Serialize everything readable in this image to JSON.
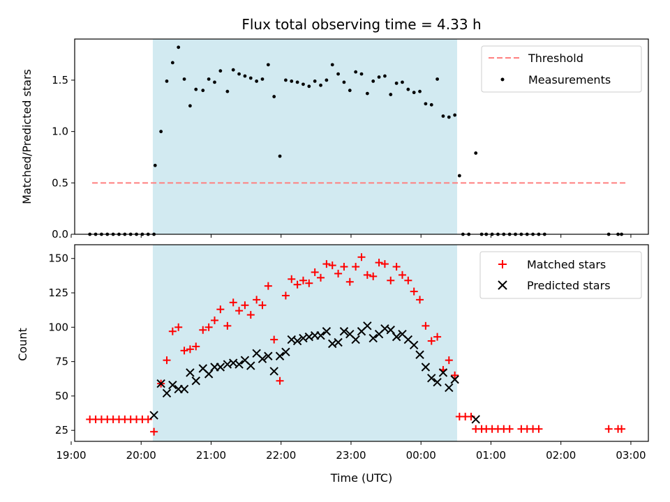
{
  "chart_data": [
    {
      "type": "scatter",
      "title": "Flux total observing time = 4.33 h",
      "xlabel": "",
      "ylabel": "Matched/Predicted stars",
      "ylim": [
        0,
        1.9
      ],
      "xlim": [
        "19:03",
        "03:15"
      ],
      "yticks": [
        0.0,
        0.5,
        1.0,
        1.5
      ],
      "yticklabels": [
        "0.0",
        "0.5",
        "1.0",
        "1.5"
      ],
      "grid": false,
      "legend_position": "top-right",
      "shaded_span": [
        "20:10",
        "00:31"
      ],
      "shade_color": "#add8e6",
      "threshold": {
        "name": "Threshold",
        "value": 0.5,
        "x": [
          "19:18",
          "02:57"
        ],
        "color": "#ff7f7f"
      },
      "series": [
        {
          "name": "Measurements",
          "color": "#000000",
          "marker": "dot",
          "points": [
            [
              "19:16",
              0
            ],
            [
              "19:21",
              0
            ],
            [
              "19:26",
              0
            ],
            [
              "19:31",
              0
            ],
            [
              "19:36",
              0
            ],
            [
              "19:41",
              0
            ],
            [
              "19:46",
              0
            ],
            [
              "19:51",
              0
            ],
            [
              "19:56",
              0
            ],
            [
              "20:01",
              0
            ],
            [
              "20:06",
              0
            ],
            [
              "20:11",
              0
            ],
            [
              "20:12",
              0.67
            ],
            [
              "20:17",
              1.0
            ],
            [
              "20:22",
              1.49
            ],
            [
              "20:27",
              1.67
            ],
            [
              "20:32",
              1.82
            ],
            [
              "20:37",
              1.51
            ],
            [
              "20:42",
              1.25
            ],
            [
              "20:47",
              1.41
            ],
            [
              "20:53",
              1.4
            ],
            [
              "20:58",
              1.51
            ],
            [
              "21:03",
              1.48
            ],
            [
              "21:08",
              1.59
            ],
            [
              "21:14",
              1.39
            ],
            [
              "21:19",
              1.6
            ],
            [
              "21:24",
              1.56
            ],
            [
              "21:29",
              1.54
            ],
            [
              "21:34",
              1.52
            ],
            [
              "21:39",
              1.49
            ],
            [
              "21:44",
              1.51
            ],
            [
              "21:49",
              1.65
            ],
            [
              "21:54",
              1.34
            ],
            [
              "21:59",
              0.76
            ],
            [
              "22:04",
              1.5
            ],
            [
              "22:09",
              1.49
            ],
            [
              "22:14",
              1.48
            ],
            [
              "22:19",
              1.46
            ],
            [
              "22:24",
              1.44
            ],
            [
              "22:29",
              1.49
            ],
            [
              "22:34",
              1.45
            ],
            [
              "22:39",
              1.5
            ],
            [
              "22:44",
              1.65
            ],
            [
              "22:49",
              1.56
            ],
            [
              "22:54",
              1.48
            ],
            [
              "22:59",
              1.4
            ],
            [
              "23:04",
              1.58
            ],
            [
              "23:09",
              1.56
            ],
            [
              "23:14",
              1.37
            ],
            [
              "23:19",
              1.49
            ],
            [
              "23:24",
              1.53
            ],
            [
              "23:29",
              1.54
            ],
            [
              "23:34",
              1.36
            ],
            [
              "23:39",
              1.47
            ],
            [
              "23:44",
              1.48
            ],
            [
              "23:49",
              1.41
            ],
            [
              "23:54",
              1.38
            ],
            [
              "23:59",
              1.39
            ],
            [
              "00:04",
              1.27
            ],
            [
              "00:09",
              1.26
            ],
            [
              "00:14",
              1.51
            ],
            [
              "00:19",
              1.15
            ],
            [
              "00:24",
              1.14
            ],
            [
              "00:29",
              1.16
            ],
            [
              "00:33",
              0.57
            ],
            [
              "00:36",
              0
            ],
            [
              "00:41",
              0
            ],
            [
              "00:47",
              0.79
            ],
            [
              "00:52",
              0
            ],
            [
              "00:56",
              0
            ],
            [
              "01:01",
              0
            ],
            [
              "01:06",
              0
            ],
            [
              "01:11",
              0
            ],
            [
              "01:16",
              0
            ],
            [
              "01:21",
              0
            ],
            [
              "01:26",
              0
            ],
            [
              "01:31",
              0
            ],
            [
              "01:36",
              0
            ],
            [
              "01:41",
              0
            ],
            [
              "01:46",
              0
            ],
            [
              "02:41",
              0
            ],
            [
              "02:49",
              0
            ],
            [
              "02:52",
              0
            ]
          ]
        }
      ]
    },
    {
      "type": "scatter",
      "title": "",
      "xlabel": "Time (UTC)",
      "ylabel": "Count",
      "ylim": [
        17,
        160
      ],
      "xlim": [
        "19:03",
        "03:15"
      ],
      "yticks": [
        25,
        50,
        75,
        100,
        125,
        150
      ],
      "yticklabels": [
        "25",
        "50",
        "75",
        "100",
        "125",
        "150"
      ],
      "xticks": [
        "19:00",
        "20:00",
        "21:00",
        "22:00",
        "23:00",
        "00:00",
        "01:00",
        "02:00",
        "03:00"
      ],
      "xticklabels": [
        "19:00",
        "20:00",
        "21:00",
        "22:00",
        "23:00",
        "00:00",
        "01:00",
        "02:00",
        "03:00"
      ],
      "grid": false,
      "legend_position": "top-right",
      "shaded_span": [
        "20:10",
        "00:31"
      ],
      "shade_color": "#add8e6",
      "series": [
        {
          "name": "Matched stars",
          "color": "#ff0000",
          "marker": "plus",
          "points": [
            [
              "19:16",
              33
            ],
            [
              "19:21",
              33
            ],
            [
              "19:26",
              33
            ],
            [
              "19:31",
              33
            ],
            [
              "19:36",
              33
            ],
            [
              "19:41",
              33
            ],
            [
              "19:46",
              33
            ],
            [
              "19:51",
              33
            ],
            [
              "19:56",
              33
            ],
            [
              "20:01",
              33
            ],
            [
              "20:06",
              33
            ],
            [
              "20:11",
              24
            ],
            [
              "20:17",
              59
            ],
            [
              "20:22",
              76
            ],
            [
              "20:27",
              97
            ],
            [
              "20:32",
              100
            ],
            [
              "20:37",
              83
            ],
            [
              "20:42",
              84
            ],
            [
              "20:47",
              86
            ],
            [
              "20:53",
              98
            ],
            [
              "20:58",
              100
            ],
            [
              "21:03",
              105
            ],
            [
              "21:08",
              113
            ],
            [
              "21:14",
              101
            ],
            [
              "21:19",
              118
            ],
            [
              "21:24",
              112
            ],
            [
              "21:29",
              116
            ],
            [
              "21:34",
              109
            ],
            [
              "21:39",
              120
            ],
            [
              "21:44",
              116
            ],
            [
              "21:49",
              130
            ],
            [
              "21:54",
              91
            ],
            [
              "21:59",
              61
            ],
            [
              "22:04",
              123
            ],
            [
              "22:09",
              135
            ],
            [
              "22:14",
              131
            ],
            [
              "22:19",
              134
            ],
            [
              "22:24",
              132
            ],
            [
              "22:29",
              140
            ],
            [
              "22:34",
              136
            ],
            [
              "22:39",
              146
            ],
            [
              "22:44",
              145
            ],
            [
              "22:49",
              139
            ],
            [
              "22:54",
              144
            ],
            [
              "22:59",
              133
            ],
            [
              "23:04",
              144
            ],
            [
              "23:09",
              151
            ],
            [
              "23:14",
              138
            ],
            [
              "23:19",
              137
            ],
            [
              "23:24",
              147
            ],
            [
              "23:29",
              146
            ],
            [
              "23:34",
              134
            ],
            [
              "23:39",
              144
            ],
            [
              "23:44",
              138
            ],
            [
              "23:49",
              134
            ],
            [
              "23:54",
              126
            ],
            [
              "23:59",
              120
            ],
            [
              "00:04",
              101
            ],
            [
              "00:09",
              90
            ],
            [
              "00:14",
              93
            ],
            [
              "00:19",
              69
            ],
            [
              "00:24",
              76
            ],
            [
              "00:29",
              65
            ],
            [
              "00:33",
              35
            ],
            [
              "00:38",
              35
            ],
            [
              "00:43",
              35
            ],
            [
              "00:47",
              26
            ],
            [
              "00:52",
              26
            ],
            [
              "00:56",
              26
            ],
            [
              "01:01",
              26
            ],
            [
              "01:06",
              26
            ],
            [
              "01:11",
              26
            ],
            [
              "01:16",
              26
            ],
            [
              "01:26",
              26
            ],
            [
              "01:31",
              26
            ],
            [
              "01:36",
              26
            ],
            [
              "01:41",
              26
            ],
            [
              "02:41",
              26
            ],
            [
              "02:49",
              26
            ],
            [
              "02:52",
              26
            ]
          ]
        },
        {
          "name": "Predicted stars",
          "color": "#000000",
          "marker": "x",
          "points": [
            [
              "20:11",
              36
            ],
            [
              "20:17",
              59
            ],
            [
              "20:22",
              52
            ],
            [
              "20:27",
              58
            ],
            [
              "20:32",
              55
            ],
            [
              "20:37",
              55
            ],
            [
              "20:42",
              67
            ],
            [
              "20:47",
              61
            ],
            [
              "20:53",
              70
            ],
            [
              "20:58",
              66
            ],
            [
              "21:03",
              71
            ],
            [
              "21:08",
              71
            ],
            [
              "21:14",
              73
            ],
            [
              "21:19",
              74
            ],
            [
              "21:24",
              73
            ],
            [
              "21:29",
              76
            ],
            [
              "21:34",
              72
            ],
            [
              "21:39",
              81
            ],
            [
              "21:44",
              77
            ],
            [
              "21:49",
              79
            ],
            [
              "21:54",
              68
            ],
            [
              "21:59",
              79
            ],
            [
              "22:04",
              82
            ],
            [
              "22:09",
              91
            ],
            [
              "22:14",
              90
            ],
            [
              "22:19",
              92
            ],
            [
              "22:24",
              93
            ],
            [
              "22:29",
              94
            ],
            [
              "22:34",
              94
            ],
            [
              "22:39",
              97
            ],
            [
              "22:44",
              88
            ],
            [
              "22:49",
              89
            ],
            [
              "22:54",
              97
            ],
            [
              "22:59",
              95
            ],
            [
              "23:04",
              91
            ],
            [
              "23:09",
              97
            ],
            [
              "23:14",
              101
            ],
            [
              "23:19",
              92
            ],
            [
              "23:24",
              95
            ],
            [
              "23:29",
              99
            ],
            [
              "23:34",
              98
            ],
            [
              "23:39",
              93
            ],
            [
              "23:44",
              95
            ],
            [
              "23:49",
              91
            ],
            [
              "23:54",
              87
            ],
            [
              "23:59",
              80
            ],
            [
              "00:04",
              71
            ],
            [
              "00:09",
              63
            ],
            [
              "00:14",
              60
            ],
            [
              "00:19",
              67
            ],
            [
              "00:24",
              56
            ],
            [
              "00:29",
              62
            ],
            [
              "00:47",
              33
            ]
          ]
        }
      ]
    }
  ]
}
